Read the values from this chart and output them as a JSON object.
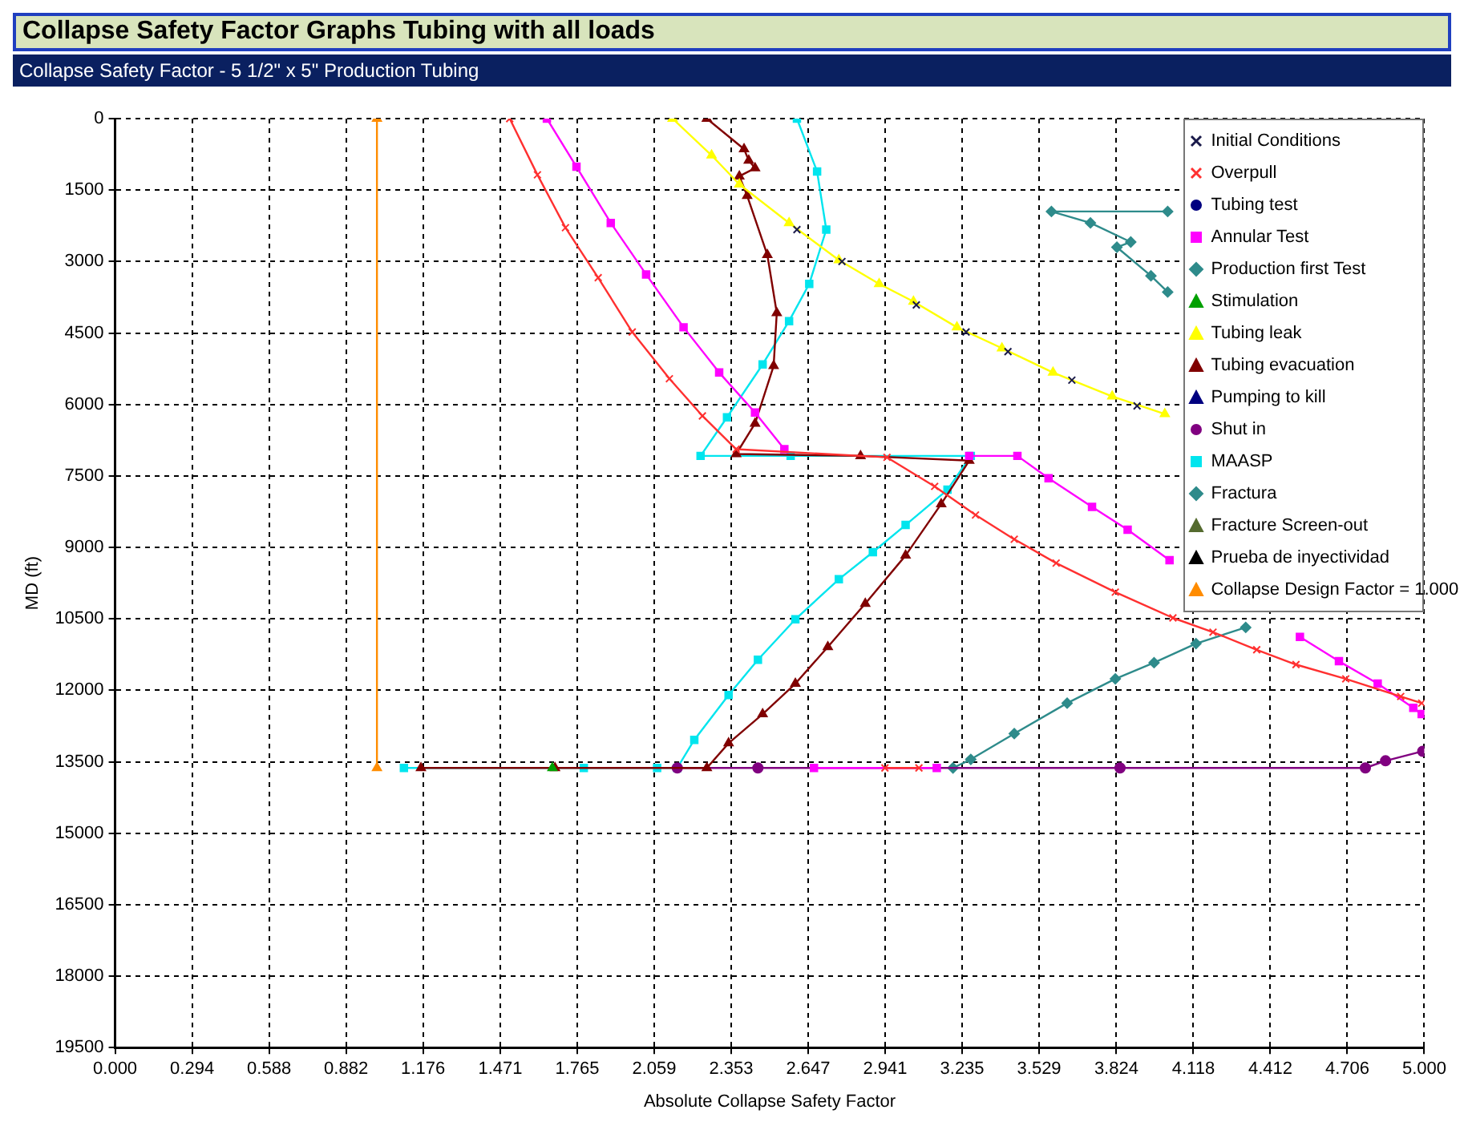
{
  "chart_data": {
    "type": "line",
    "title": "Collapse Safety Factor Graphs Tubing with all loads",
    "subtitle": "Collapse Safety Factor - 5 1/2\" x 5\" Production Tubing",
    "xlabel": "Absolute Collapse Safety Factor",
    "ylabel": "MD (ft)",
    "xlim": [
      0,
      5
    ],
    "ylim": [
      19500,
      0
    ],
    "xticks": [
      {
        "value": 0,
        "label": "0.000"
      },
      0.294,
      0.588,
      0.882,
      1.176,
      1.471,
      1.765,
      2.059,
      2.353,
      2.647,
      2.941,
      3.235,
      3.529,
      3.824,
      4.118,
      4.412,
      4.706,
      {
        "value": 5,
        "label": "5.000"
      }
    ],
    "yticks": [
      0,
      1500,
      3000,
      4500,
      6000,
      7500,
      9000,
      10500,
      12000,
      13500,
      15000,
      16500,
      18000,
      19500
    ],
    "grid": true,
    "legend": "top right",
    "series": [
      {
        "name": "Initial Conditions",
        "type": "scatter",
        "color": "#1a1a4a",
        "marker": "cross",
        "x": [
          2.604,
          2.776,
          3.06,
          3.25,
          3.41,
          3.654,
          3.903
        ],
        "values": [
          2330,
          3000,
          3910,
          4480,
          4890,
          5490,
          6030
        ]
      },
      {
        "name": "Overpull",
        "color": "#ff3030",
        "marker": "cross",
        "x": [
          1.507,
          1.613,
          1.72,
          1.845,
          1.975,
          2.117,
          2.243,
          2.372,
          2.948,
          3.13,
          3.286,
          3.434,
          3.594,
          3.82,
          4.04,
          4.193,
          4.36,
          4.51,
          4.7,
          4.91,
          4.99,
          null,
          3.07,
          2.94
        ],
        "values": [
          0,
          1180,
          2290,
          3340,
          4480,
          5460,
          6240,
          6940,
          7110,
          7720,
          8320,
          8830,
          9330,
          9940,
          10480,
          10780,
          11150,
          11460,
          11760,
          12130,
          12270,
          null,
          13630,
          13630
        ]
      },
      {
        "name": "Tubing test",
        "color": "#000080",
        "marker": "circle"
      },
      {
        "name": "Annular Test",
        "color": "#ff00ff",
        "marker": "square",
        "x": [
          1.649,
          1.762,
          1.893,
          2.028,
          2.171,
          2.307,
          2.444,
          2.556,
          null,
          3.262,
          3.446,
          3.565,
          3.731,
          3.867,
          4.027,
          null,
          4.525,
          4.674,
          4.822,
          4.958,
          4.99,
          null,
          2.669,
          3.138
        ],
        "values": [
          0,
          1010,
          2190,
          3270,
          4380,
          5330,
          6170,
          6940,
          null,
          7080,
          7080,
          7550,
          8150,
          8630,
          9270,
          null,
          10880,
          11390,
          11860,
          12370,
          12500,
          null,
          13630,
          13630
        ]
      },
      {
        "name": "Production first Test",
        "color": "#2e8b8b",
        "marker": "diamond",
        "x": [
          4.02,
          3.576,
          3.725,
          3.879,
          3.826,
          3.956,
          4.02
        ],
        "values": [
          1950,
          1950,
          2190,
          2590,
          2700,
          3300,
          3640
        ]
      },
      {
        "name": "Stimulation",
        "color": "#00a000",
        "marker": "triangle",
        "x": [
          1.67
        ],
        "values": [
          13630
        ]
      },
      {
        "name": "Tubing leak",
        "color": "#ffff00",
        "marker": "triangle",
        "x": [
          2.129,
          2.278,
          2.384,
          2.574,
          2.764,
          2.918,
          3.049,
          3.215,
          3.387,
          3.582,
          3.808,
          4.009
        ],
        "values": [
          0,
          770,
          1380,
          2190,
          2970,
          3470,
          3840,
          4380,
          4820,
          5330,
          5830,
          6200
        ]
      },
      {
        "name": "Tubing evacuation",
        "color": "#800000",
        "marker": "triangle",
        "x": [
          2.26,
          2.402,
          2.42,
          2.444,
          2.384,
          2.414,
          2.491,
          2.527,
          2.515,
          2.444,
          2.372,
          2.847,
          3.262,
          3.155,
          3.019,
          2.865,
          2.722,
          2.598,
          2.473,
          2.343,
          2.26,
          1.68,
          1.168
        ],
        "values": [
          0,
          640,
          880,
          1040,
          1210,
          1620,
          2860,
          4080,
          5190,
          6400,
          7040,
          7080,
          7180,
          8090,
          9170,
          10180,
          11090,
          11860,
          12500,
          13110,
          13630,
          13630,
          13630
        ]
      },
      {
        "name": "Pumping to kill",
        "color": "#000080",
        "marker": "triangle"
      },
      {
        "name": "Shut in",
        "color": "#800080",
        "marker": "circle",
        "x": [
          2.147,
          2.455,
          3.838,
          4.775,
          4.852,
          4.994
        ],
        "values": [
          13630,
          13630,
          13630,
          13630,
          13480,
          13280
        ]
      },
      {
        "name": "MAASP",
        "color": "#00e5ee",
        "marker": "square",
        "x": [
          2.604,
          2.681,
          2.716,
          2.651,
          2.574,
          2.473,
          2.337,
          2.236,
          2.58,
          3.268,
          3.179,
          3.019,
          2.894,
          2.764,
          2.598,
          2.455,
          2.343,
          2.212,
          2.147,
          2.07,
          1.79,
          1.103
        ],
        "values": [
          0,
          1110,
          2330,
          3470,
          4250,
          5160,
          6270,
          7080,
          7080,
          7080,
          7790,
          8530,
          9100,
          9670,
          10510,
          11360,
          12100,
          13040,
          13630,
          13630,
          13630,
          13630
        ]
      },
      {
        "name": "Fractura",
        "color": "#2e8b8b",
        "marker": "diamond",
        "x": [
          3.2,
          3.268,
          3.434,
          3.636,
          3.82,
          3.968,
          4.128,
          4.318
        ],
        "values": [
          13630,
          13450,
          12910,
          12270,
          11760,
          11420,
          11020,
          10680
        ]
      },
      {
        "name": "Fracture Screen-out",
        "color": "#556b2f",
        "marker": "triangle"
      },
      {
        "name": "Prueba de inyectividad",
        "color": "#000000",
        "marker": "triangle"
      },
      {
        "name": "Collapse Design Factor = 1.000",
        "color": "#ff8c00",
        "marker": "triangle",
        "x": [
          1,
          1
        ],
        "values": [
          0,
          13630
        ]
      }
    ]
  }
}
